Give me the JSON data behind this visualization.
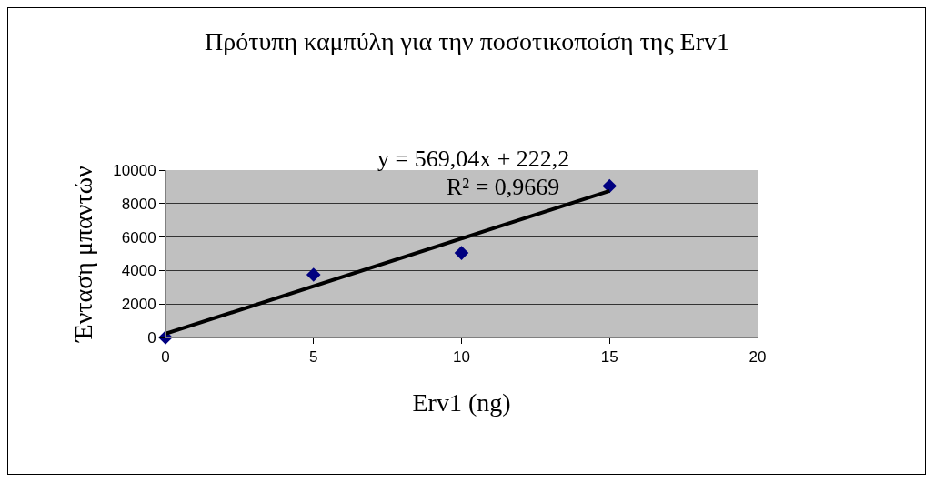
{
  "chart_data": {
    "type": "scatter",
    "title": "Πρότυπη καμπύλη για την ποσοτικοποίση της Erv1",
    "xlabel": "Erv1 (ng)",
    "ylabel": "Ένταση μπαντών",
    "x": [
      0,
      5,
      10,
      15
    ],
    "series": [
      {
        "color": "#000080",
        "marker": "diamond",
        "values": [
          0,
          3750,
          5050,
          9050
        ]
      },
      {
        "type": "line",
        "color": "#000000",
        "marker": "none",
        "x": [
          0,
          15
        ],
        "values": [
          220,
          8760
        ]
      }
    ],
    "annotations": [
      "y = 569,04x + 222,2",
      "R² = 0,9669"
    ],
    "xlim": [
      0,
      20
    ],
    "xticks": [
      0,
      5,
      10,
      15,
      20
    ],
    "ylim": [
      0,
      10000
    ],
    "yticks": [
      0,
      2000,
      4000,
      6000,
      8000,
      10000
    ],
    "grid": "y"
  }
}
